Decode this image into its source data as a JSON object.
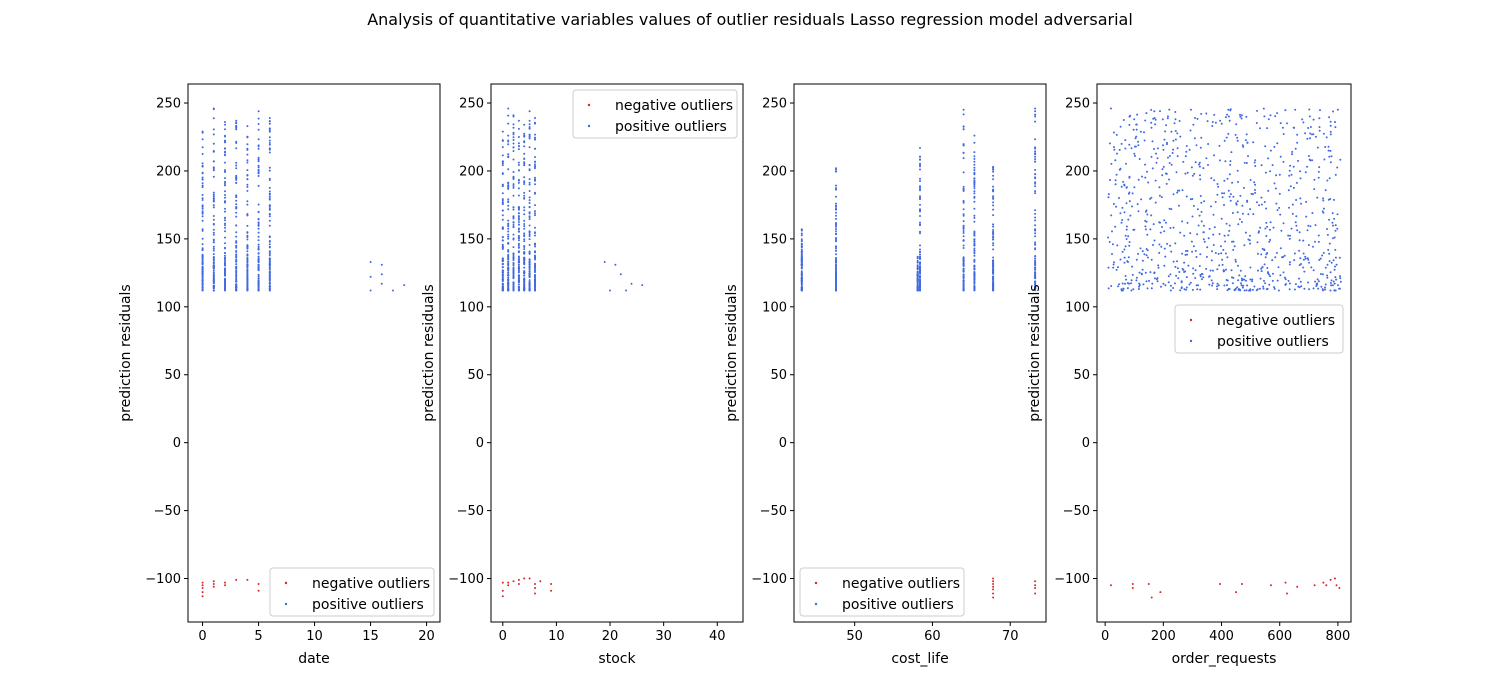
{
  "title": "Analysis of quantitative variables values of outlier residuals Lasso regression model adversarial",
  "colors": {
    "negative": "#d62728",
    "positive": "#4169e1"
  },
  "chart_data": [
    {
      "type": "scatter",
      "xlabel": "date",
      "ylabel": "prediction residuals",
      "xlim": [
        -1.3,
        21.2
      ],
      "ylim": [
        -132,
        264
      ],
      "xticks": [
        0,
        5,
        10,
        15,
        20
      ],
      "yticks": [
        -100,
        -50,
        0,
        50,
        100,
        150,
        200,
        250
      ],
      "legend": "lower right",
      "legend_entries": [
        "negative outliers",
        "positive outliers"
      ],
      "series": [
        {
          "name": "negative outliers",
          "color": "#d62728",
          "points": [
            [
              0,
              -103
            ],
            [
              0,
              -105
            ],
            [
              0,
              -107
            ],
            [
              0,
              -110
            ],
            [
              0,
              -113
            ],
            [
              1,
              -102
            ],
            [
              1,
              -104
            ],
            [
              1,
              -106
            ],
            [
              2,
              -103
            ],
            [
              2,
              -105
            ],
            [
              3,
              -101
            ],
            [
              4,
              -101
            ],
            [
              5,
              -104
            ],
            [
              5,
              -109
            ]
          ]
        },
        {
          "name": "positive outliers",
          "color": "#4169e1",
          "columns": [
            [
              0,
              112,
              229
            ],
            [
              1,
              112,
              246
            ],
            [
              2,
              112,
              236
            ],
            [
              3,
              112,
              237
            ],
            [
              4,
              112,
              233
            ],
            [
              5,
              112,
              244
            ],
            [
              6,
              112,
              239
            ]
          ],
          "points": [
            [
              15,
              133
            ],
            [
              15,
              122
            ],
            [
              15,
              112
            ],
            [
              16,
              131
            ],
            [
              16,
              124
            ],
            [
              16,
              117
            ],
            [
              17,
              112
            ],
            [
              18,
              116
            ]
          ]
        }
      ]
    },
    {
      "type": "scatter",
      "xlabel": "stock",
      "ylabel": "prediction residuals",
      "xlim": [
        -2.2,
        44.8
      ],
      "ylim": [
        -132,
        264
      ],
      "xticks": [
        0,
        10,
        20,
        30,
        40
      ],
      "yticks": [
        -100,
        -50,
        0,
        50,
        100,
        150,
        200,
        250
      ],
      "legend": "upper right",
      "legend_entries": [
        "negative outliers",
        "positive outliers"
      ],
      "series": [
        {
          "name": "negative outliers",
          "color": "#d62728",
          "points": [
            [
              0,
              -103
            ],
            [
              0,
              -109
            ],
            [
              0,
              -113
            ],
            [
              1,
              -103
            ],
            [
              1,
              -105
            ],
            [
              2,
              -102
            ],
            [
              3,
              -101
            ],
            [
              3,
              -104
            ],
            [
              4,
              -100
            ],
            [
              5,
              -100
            ],
            [
              6,
              -104
            ],
            [
              6,
              -107
            ],
            [
              6,
              -111
            ],
            [
              7,
              -102
            ],
            [
              9,
              -104
            ],
            [
              9,
              -109
            ]
          ]
        },
        {
          "name": "positive outliers",
          "color": "#4169e1",
          "columns": [
            [
              0,
              112,
              229
            ],
            [
              1,
              112,
              246
            ],
            [
              2,
              112,
              241
            ],
            [
              3,
              112,
              237
            ],
            [
              4,
              112,
              234
            ],
            [
              5,
              112,
              244
            ],
            [
              6,
              112,
              239
            ]
          ],
          "points": [
            [
              19,
              133
            ],
            [
              20,
              112
            ],
            [
              21,
              131
            ],
            [
              22,
              124
            ],
            [
              23,
              112
            ],
            [
              24,
              117
            ],
            [
              26,
              116
            ]
          ]
        }
      ]
    },
    {
      "type": "scatter",
      "xlabel": "cost_life",
      "ylabel": "prediction residuals",
      "xlim": [
        42.2,
        74.6
      ],
      "ylim": [
        -132,
        264
      ],
      "xticks": [
        50,
        60,
        70
      ],
      "yticks": [
        -100,
        -50,
        0,
        50,
        100,
        150,
        200,
        250
      ],
      "legend": "lower left",
      "legend_entries": [
        "negative outliers",
        "positive outliers"
      ],
      "series": [
        {
          "name": "negative outliers",
          "color": "#d62728",
          "points": [
            [
              67.8,
              -100
            ],
            [
              67.8,
              -102
            ],
            [
              67.8,
              -104
            ],
            [
              67.8,
              -106
            ],
            [
              67.8,
              -108
            ],
            [
              67.8,
              -111
            ],
            [
              67.8,
              -114
            ],
            [
              73.2,
              -102
            ],
            [
              73.2,
              -105
            ],
            [
              73.2,
              -107
            ],
            [
              73.2,
              -111
            ]
          ]
        },
        {
          "name": "positive outliers",
          "color": "#4169e1",
          "columns": [
            [
              43.2,
              112,
              157
            ],
            [
              47.6,
              112,
              202
            ],
            [
              58.1,
              112,
              126
            ],
            [
              58.4,
              112,
              217
            ],
            [
              64,
              112,
              245
            ],
            [
              65.4,
              112,
              226
            ],
            [
              67.8,
              112,
              203
            ],
            [
              73.2,
              112,
              246
            ]
          ],
          "points": []
        }
      ]
    },
    {
      "type": "scatter",
      "xlabel": "order_requests",
      "ylabel": "prediction residuals",
      "xlim": [
        -28,
        845
      ],
      "ylim": [
        -132,
        264
      ],
      "xticks": [
        0,
        200,
        400,
        600,
        800
      ],
      "yticks": [
        -100,
        -50,
        0,
        50,
        100,
        150,
        200,
        250
      ],
      "legend": "center right",
      "legend_entries": [
        "negative outliers",
        "positive outliers"
      ],
      "series": [
        {
          "name": "negative outliers",
          "color": "#d62728",
          "points": [
            [
              20,
              -105
            ],
            [
              95,
              -104
            ],
            [
              95,
              -107
            ],
            [
              150,
              -104
            ],
            [
              160,
              -114
            ],
            [
              190,
              -110
            ],
            [
              395,
              -104
            ],
            [
              450,
              -110
            ],
            [
              470,
              -104
            ],
            [
              570,
              -105
            ],
            [
              620,
              -103
            ],
            [
              625,
              -111
            ],
            [
              660,
              -106
            ],
            [
              720,
              -105
            ],
            [
              750,
              -103
            ],
            [
              760,
              -105
            ],
            [
              775,
              -101
            ],
            [
              790,
              -100
            ],
            [
              795,
              -105
            ],
            [
              805,
              -107
            ]
          ],
          "scatter_band": null
        },
        {
          "name": "positive outliers",
          "color": "#4169e1",
          "band": {
            "x_range": [
              10,
              810
            ],
            "y_range": [
              112,
              246
            ],
            "count": 900
          },
          "points": [
            [
              20,
              246
            ],
            [
              100,
              238
            ],
            [
              170,
              239
            ],
            [
              295,
              245
            ],
            [
              330,
              242
            ],
            [
              800,
              245
            ],
            [
              790,
              236
            ],
            [
              625,
              235
            ]
          ]
        }
      ]
    }
  ]
}
